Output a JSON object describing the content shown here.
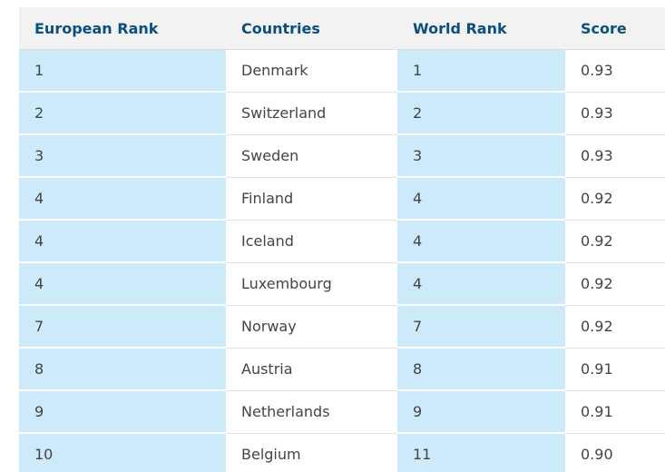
{
  "table": {
    "headers": [
      "European Rank",
      "Countries",
      "World Rank",
      "Score"
    ],
    "rows": [
      [
        "1",
        "Denmark",
        "1",
        "0.93"
      ],
      [
        "2",
        "Switzerland",
        "2",
        "0.93"
      ],
      [
        "3",
        "Sweden",
        "3",
        "0.93"
      ],
      [
        "4",
        "Finland",
        "4",
        "0.92"
      ],
      [
        "4",
        "Iceland",
        "4",
        "0.92"
      ],
      [
        "4",
        "Luxembourg",
        "4",
        "0.92"
      ],
      [
        "7",
        "Norway",
        "7",
        "0.92"
      ],
      [
        "8",
        "Austria",
        "8",
        "0.91"
      ],
      [
        "9",
        "Netherlands",
        "9",
        "0.91"
      ],
      [
        "10",
        "Belgium",
        "11",
        "0.90"
      ]
    ]
  },
  "colors": {
    "header_text": "#0b4f7c",
    "header_bg": "#f2f2f2",
    "highlight_col_bg": "#cdeafa",
    "cell_text": "#444444"
  }
}
